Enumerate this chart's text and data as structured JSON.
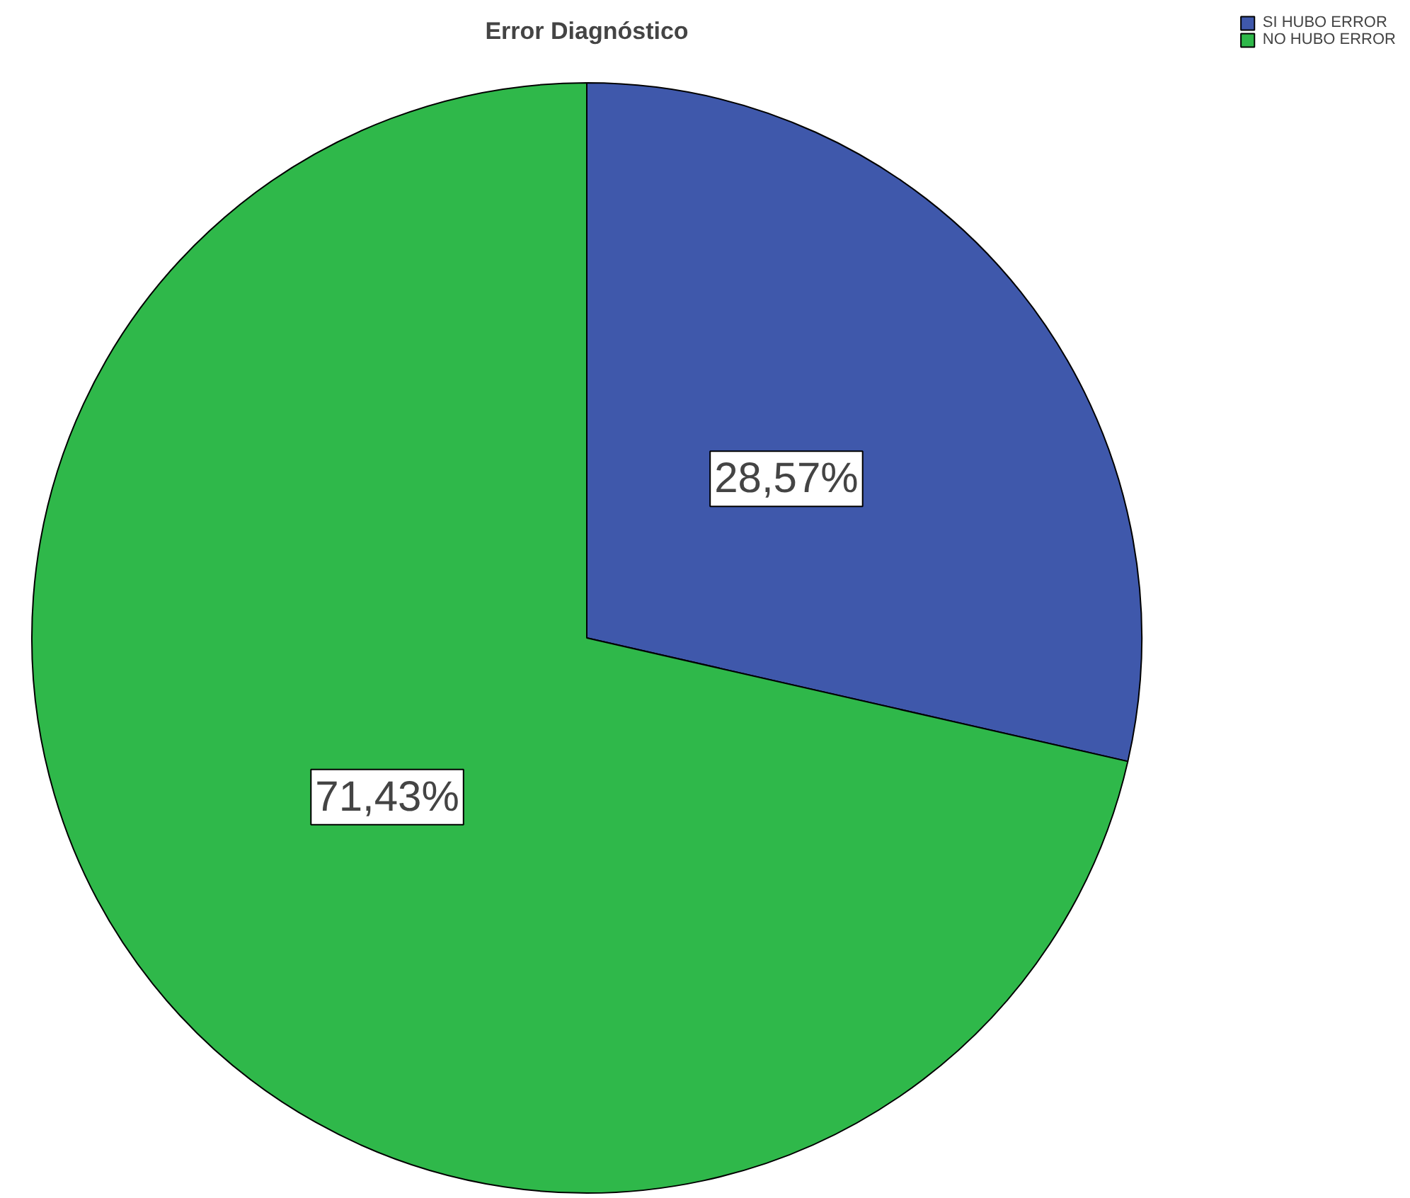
{
  "chart_data": {
    "type": "pie",
    "title": "Error Diagnóstico",
    "categories": [
      "SI HUBO ERROR",
      "NO HUBO ERROR"
    ],
    "values": [
      28.57,
      71.43
    ],
    "colors": [
      "#3f58ab",
      "#2fb84a"
    ],
    "value_labels": [
      "28,57%",
      "71,43%"
    ],
    "legend": "top right"
  }
}
